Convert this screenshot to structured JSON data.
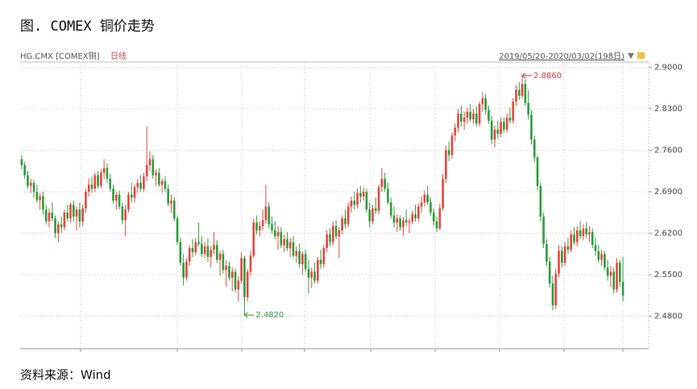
{
  "chart_data": {
    "type": "candlestick",
    "title": "图. COMEX 铜价走势",
    "symbol": "HG.CMX [COMEX铜]",
    "period": "日线",
    "range": "2019/05/20-2020/03/02(198日)",
    "source": "资料来源：Wind",
    "up_color": "#e8473f",
    "down_color": "#2e9e3e",
    "grid": true,
    "ylim": [
      2.425,
      2.909
    ],
    "yticks": [
      {
        "value": 2.48,
        "label": "2.4800"
      },
      {
        "value": 2.55,
        "label": "2.5500"
      },
      {
        "value": 2.62,
        "label": "2.6200"
      },
      {
        "value": 2.69,
        "label": "2.6900"
      },
      {
        "value": 2.76,
        "label": "2.7600"
      },
      {
        "value": 2.83,
        "label": "2.8300"
      },
      {
        "value": 2.9,
        "label": "2.9000"
      }
    ],
    "annotations": [
      {
        "value": 2.886,
        "label": "2.8860",
        "color": "#e03c3c"
      },
      {
        "value": 2.482,
        "label": "2.4820",
        "color": "#2e9e3e"
      }
    ],
    "ohlc": [
      [
        2.745,
        2.752,
        2.728,
        2.735
      ],
      [
        2.735,
        2.74,
        2.712,
        2.718
      ],
      [
        2.718,
        2.725,
        2.695,
        2.7
      ],
      [
        2.7,
        2.712,
        2.688,
        2.705
      ],
      [
        2.705,
        2.71,
        2.68,
        2.69
      ],
      [
        2.69,
        2.702,
        2.672,
        2.676
      ],
      [
        2.676,
        2.688,
        2.66,
        2.682
      ],
      [
        2.682,
        2.69,
        2.652,
        2.66
      ],
      [
        2.66,
        2.668,
        2.635,
        2.64
      ],
      [
        2.64,
        2.662,
        2.63,
        2.655
      ],
      [
        2.655,
        2.672,
        2.64,
        2.645
      ],
      [
        2.645,
        2.65,
        2.612,
        2.62
      ],
      [
        2.62,
        2.64,
        2.605,
        2.635
      ],
      [
        2.635,
        2.648,
        2.62,
        2.63
      ],
      [
        2.63,
        2.66,
        2.625,
        2.655
      ],
      [
        2.655,
        2.668,
        2.64,
        2.645
      ],
      [
        2.645,
        2.672,
        2.638,
        2.668
      ],
      [
        2.668,
        2.675,
        2.64,
        2.648
      ],
      [
        2.648,
        2.665,
        2.625,
        2.66
      ],
      [
        2.66,
        2.672,
        2.63,
        2.64
      ],
      [
        2.64,
        2.668,
        2.632,
        2.662
      ],
      [
        2.662,
        2.695,
        2.655,
        2.69
      ],
      [
        2.69,
        2.712,
        2.682,
        2.702
      ],
      [
        2.702,
        2.715,
        2.688,
        2.695
      ],
      [
        2.695,
        2.722,
        2.69,
        2.718
      ],
      [
        2.718,
        2.725,
        2.695,
        2.7
      ],
      [
        2.7,
        2.728,
        2.696,
        2.722
      ],
      [
        2.722,
        2.745,
        2.712,
        2.73
      ],
      [
        2.73,
        2.738,
        2.705,
        2.712
      ],
      [
        2.712,
        2.72,
        2.69,
        2.695
      ],
      [
        2.695,
        2.702,
        2.67,
        2.675
      ],
      [
        2.675,
        2.69,
        2.66,
        2.685
      ],
      [
        2.685,
        2.692,
        2.66,
        2.665
      ],
      [
        2.665,
        2.672,
        2.635,
        2.642
      ],
      [
        2.642,
        2.668,
        2.615,
        2.66
      ],
      [
        2.66,
        2.69,
        2.655,
        2.685
      ],
      [
        2.685,
        2.705,
        2.672,
        2.68
      ],
      [
        2.68,
        2.702,
        2.672,
        2.698
      ],
      [
        2.698,
        2.712,
        2.688,
        2.705
      ],
      [
        2.705,
        2.718,
        2.69,
        2.695
      ],
      [
        2.695,
        2.722,
        2.69,
        2.716
      ],
      [
        2.716,
        2.8,
        2.708,
        2.735
      ],
      [
        2.735,
        2.758,
        2.725,
        2.745
      ],
      [
        2.745,
        2.752,
        2.712,
        2.718
      ],
      [
        2.718,
        2.728,
        2.7,
        2.722
      ],
      [
        2.722,
        2.73,
        2.698,
        2.702
      ],
      [
        2.702,
        2.712,
        2.688,
        2.708
      ],
      [
        2.708,
        2.716,
        2.69,
        2.695
      ],
      [
        2.695,
        2.702,
        2.665,
        2.67
      ],
      [
        2.67,
        2.685,
        2.655,
        2.675
      ],
      [
        2.675,
        2.68,
        2.64,
        2.645
      ],
      [
        2.645,
        2.65,
        2.6,
        2.605
      ],
      [
        2.605,
        2.612,
        2.565,
        2.57
      ],
      [
        2.57,
        2.585,
        2.532,
        2.545
      ],
      [
        2.545,
        2.578,
        2.54,
        2.572
      ],
      [
        2.572,
        2.6,
        2.565,
        2.595
      ],
      [
        2.595,
        2.61,
        2.58,
        2.588
      ],
      [
        2.588,
        2.612,
        2.582,
        2.605
      ],
      [
        2.605,
        2.638,
        2.598,
        2.602
      ],
      [
        2.602,
        2.615,
        2.58,
        2.585
      ],
      [
        2.585,
        2.605,
        2.578,
        2.598
      ],
      [
        2.598,
        2.612,
        2.572,
        2.58
      ],
      [
        2.58,
        2.598,
        2.562,
        2.592
      ],
      [
        2.592,
        2.622,
        2.585,
        2.6
      ],
      [
        2.6,
        2.608,
        2.57,
        2.575
      ],
      [
        2.575,
        2.59,
        2.548,
        2.585
      ],
      [
        2.585,
        2.592,
        2.552,
        2.558
      ],
      [
        2.558,
        2.575,
        2.53,
        2.565
      ],
      [
        2.565,
        2.572,
        2.54,
        2.545
      ],
      [
        2.545,
        2.562,
        2.522,
        2.555
      ],
      [
        2.555,
        2.56,
        2.52,
        2.525
      ],
      [
        2.525,
        2.548,
        2.505,
        2.54
      ],
      [
        2.54,
        2.588,
        2.535,
        2.578
      ],
      [
        2.578,
        2.582,
        2.482,
        2.512
      ],
      [
        2.512,
        2.56,
        2.505,
        2.555
      ],
      [
        2.555,
        2.59,
        2.548,
        2.582
      ],
      [
        2.582,
        2.645,
        2.578,
        2.638
      ],
      [
        2.638,
        2.65,
        2.618,
        2.625
      ],
      [
        2.625,
        2.64,
        2.615,
        2.632
      ],
      [
        2.632,
        2.66,
        2.625,
        2.642
      ],
      [
        2.642,
        2.702,
        2.636,
        2.665
      ],
      [
        2.665,
        2.672,
        2.628,
        2.635
      ],
      [
        2.635,
        2.648,
        2.62,
        2.625
      ],
      [
        2.625,
        2.64,
        2.61,
        2.615
      ],
      [
        2.615,
        2.632,
        2.592,
        2.622
      ],
      [
        2.622,
        2.63,
        2.595,
        2.6
      ],
      [
        2.6,
        2.618,
        2.588,
        2.61
      ],
      [
        2.61,
        2.622,
        2.59,
        2.595
      ],
      [
        2.595,
        2.612,
        2.58,
        2.605
      ],
      [
        2.605,
        2.615,
        2.578,
        2.582
      ],
      [
        2.582,
        2.598,
        2.57,
        2.59
      ],
      [
        2.59,
        2.602,
        2.562,
        2.568
      ],
      [
        2.568,
        2.59,
        2.55,
        2.585
      ],
      [
        2.585,
        2.592,
        2.555,
        2.56
      ],
      [
        2.56,
        2.575,
        2.518,
        2.545
      ],
      [
        2.545,
        2.562,
        2.528,
        2.555
      ],
      [
        2.555,
        2.57,
        2.535,
        2.54
      ],
      [
        2.54,
        2.58,
        2.535,
        2.575
      ],
      [
        2.575,
        2.592,
        2.56,
        2.568
      ],
      [
        2.568,
        2.6,
        2.562,
        2.595
      ],
      [
        2.595,
        2.625,
        2.588,
        2.618
      ],
      [
        2.618,
        2.628,
        2.598,
        2.605
      ],
      [
        2.605,
        2.64,
        2.6,
        2.632
      ],
      [
        2.632,
        2.642,
        2.61,
        2.615
      ],
      [
        2.615,
        2.63,
        2.578,
        2.625
      ],
      [
        2.625,
        2.65,
        2.618,
        2.645
      ],
      [
        2.645,
        2.66,
        2.628,
        2.635
      ],
      [
        2.635,
        2.672,
        2.63,
        2.665
      ],
      [
        2.665,
        2.682,
        2.655,
        2.675
      ],
      [
        2.675,
        2.69,
        2.66,
        2.668
      ],
      [
        2.668,
        2.695,
        2.662,
        2.688
      ],
      [
        2.688,
        2.7,
        2.672,
        2.682
      ],
      [
        2.682,
        2.698,
        2.675,
        2.69
      ],
      [
        2.69,
        2.695,
        2.655,
        2.66
      ],
      [
        2.66,
        2.672,
        2.63,
        2.64
      ],
      [
        2.64,
        2.668,
        2.635,
        2.662
      ],
      [
        2.662,
        2.68,
        2.652,
        2.658
      ],
      [
        2.658,
        2.702,
        2.652,
        2.698
      ],
      [
        2.698,
        2.73,
        2.69,
        2.712
      ],
      [
        2.712,
        2.722,
        2.69,
        2.695
      ],
      [
        2.695,
        2.705,
        2.668,
        2.672
      ],
      [
        2.672,
        2.68,
        2.645,
        2.65
      ],
      [
        2.65,
        2.665,
        2.63,
        2.638
      ],
      [
        2.638,
        2.652,
        2.622,
        2.645
      ],
      [
        2.645,
        2.65,
        2.625,
        2.63
      ],
      [
        2.63,
        2.648,
        2.615,
        2.642
      ],
      [
        2.642,
        2.66,
        2.632,
        2.638
      ],
      [
        2.638,
        2.645,
        2.62,
        2.64
      ],
      [
        2.64,
        2.658,
        2.635,
        2.652
      ],
      [
        2.652,
        2.668,
        2.64,
        2.645
      ],
      [
        2.645,
        2.67,
        2.64,
        2.665
      ],
      [
        2.665,
        2.682,
        2.655,
        2.672
      ],
      [
        2.672,
        2.692,
        2.665,
        2.685
      ],
      [
        2.685,
        2.7,
        2.668,
        2.672
      ],
      [
        2.672,
        2.68,
        2.65,
        2.655
      ],
      [
        2.655,
        2.662,
        2.632,
        2.64
      ],
      [
        2.64,
        2.648,
        2.622,
        2.628
      ],
      [
        2.628,
        2.67,
        2.625,
        2.662
      ],
      [
        2.662,
        2.72,
        2.658,
        2.712
      ],
      [
        2.712,
        2.768,
        2.705,
        2.76
      ],
      [
        2.76,
        2.775,
        2.742,
        2.752
      ],
      [
        2.752,
        2.79,
        2.745,
        2.785
      ],
      [
        2.785,
        2.805,
        2.775,
        2.798
      ],
      [
        2.798,
        2.83,
        2.79,
        2.822
      ],
      [
        2.822,
        2.835,
        2.8,
        2.808
      ],
      [
        2.808,
        2.825,
        2.795,
        2.815
      ],
      [
        2.815,
        2.832,
        2.805,
        2.825
      ],
      [
        2.825,
        2.838,
        2.808,
        2.812
      ],
      [
        2.812,
        2.83,
        2.805,
        2.822
      ],
      [
        2.822,
        2.835,
        2.8,
        2.805
      ],
      [
        2.805,
        2.842,
        2.8,
        2.838
      ],
      [
        2.838,
        2.858,
        2.825,
        2.848
      ],
      [
        2.848,
        2.855,
        2.82,
        2.828
      ],
      [
        2.828,
        2.835,
        2.805,
        2.81
      ],
      [
        2.81,
        2.818,
        2.77,
        2.778
      ],
      [
        2.778,
        2.802,
        2.765,
        2.795
      ],
      [
        2.795,
        2.81,
        2.78,
        2.788
      ],
      [
        2.788,
        2.815,
        2.782,
        2.808
      ],
      [
        2.808,
        2.815,
        2.79,
        2.795
      ],
      [
        2.795,
        2.822,
        2.79,
        2.815
      ],
      [
        2.815,
        2.832,
        2.805,
        2.81
      ],
      [
        2.81,
        2.848,
        2.805,
        2.842
      ],
      [
        2.842,
        2.87,
        2.835,
        2.862
      ],
      [
        2.862,
        2.875,
        2.845,
        2.852
      ],
      [
        2.852,
        2.886,
        2.848,
        2.872
      ],
      [
        2.872,
        2.88,
        2.835,
        2.84
      ],
      [
        2.84,
        2.862,
        2.812,
        2.82
      ],
      [
        2.82,
        2.828,
        2.77,
        2.778
      ],
      [
        2.778,
        2.785,
        2.74,
        2.748
      ],
      [
        2.748,
        2.752,
        2.692,
        2.7
      ],
      [
        2.7,
        2.705,
        2.64,
        2.648
      ],
      [
        2.648,
        2.655,
        2.595,
        2.602
      ],
      [
        2.602,
        2.61,
        2.565,
        2.572
      ],
      [
        2.572,
        2.58,
        2.528,
        2.535
      ],
      [
        2.535,
        2.548,
        2.49,
        2.498
      ],
      [
        2.498,
        2.56,
        2.492,
        2.552
      ],
      [
        2.552,
        2.6,
        2.545,
        2.59
      ],
      [
        2.59,
        2.598,
        2.562,
        2.57
      ],
      [
        2.57,
        2.605,
        2.565,
        2.598
      ],
      [
        2.598,
        2.612,
        2.585,
        2.592
      ],
      [
        2.592,
        2.625,
        2.588,
        2.618
      ],
      [
        2.618,
        2.63,
        2.6,
        2.605
      ],
      [
        2.605,
        2.632,
        2.598,
        2.625
      ],
      [
        2.625,
        2.64,
        2.61,
        2.615
      ],
      [
        2.615,
        2.635,
        2.608,
        2.628
      ],
      [
        2.628,
        2.638,
        2.612,
        2.618
      ],
      [
        2.618,
        2.632,
        2.605,
        2.622
      ],
      [
        2.622,
        2.628,
        2.595,
        2.6
      ],
      [
        2.6,
        2.612,
        2.582,
        2.59
      ],
      [
        2.59,
        2.6,
        2.57,
        2.575
      ],
      [
        2.575,
        2.592,
        2.565,
        2.585
      ],
      [
        2.585,
        2.59,
        2.558,
        2.562
      ],
      [
        2.562,
        2.575,
        2.54,
        2.548
      ],
      [
        2.548,
        2.565,
        2.53,
        2.555
      ],
      [
        2.555,
        2.562,
        2.518,
        2.525
      ],
      [
        2.525,
        2.578,
        2.52,
        2.57
      ],
      [
        2.57,
        2.575,
        2.53,
        2.538
      ],
      [
        2.538,
        2.58,
        2.505,
        2.515
      ]
    ]
  }
}
